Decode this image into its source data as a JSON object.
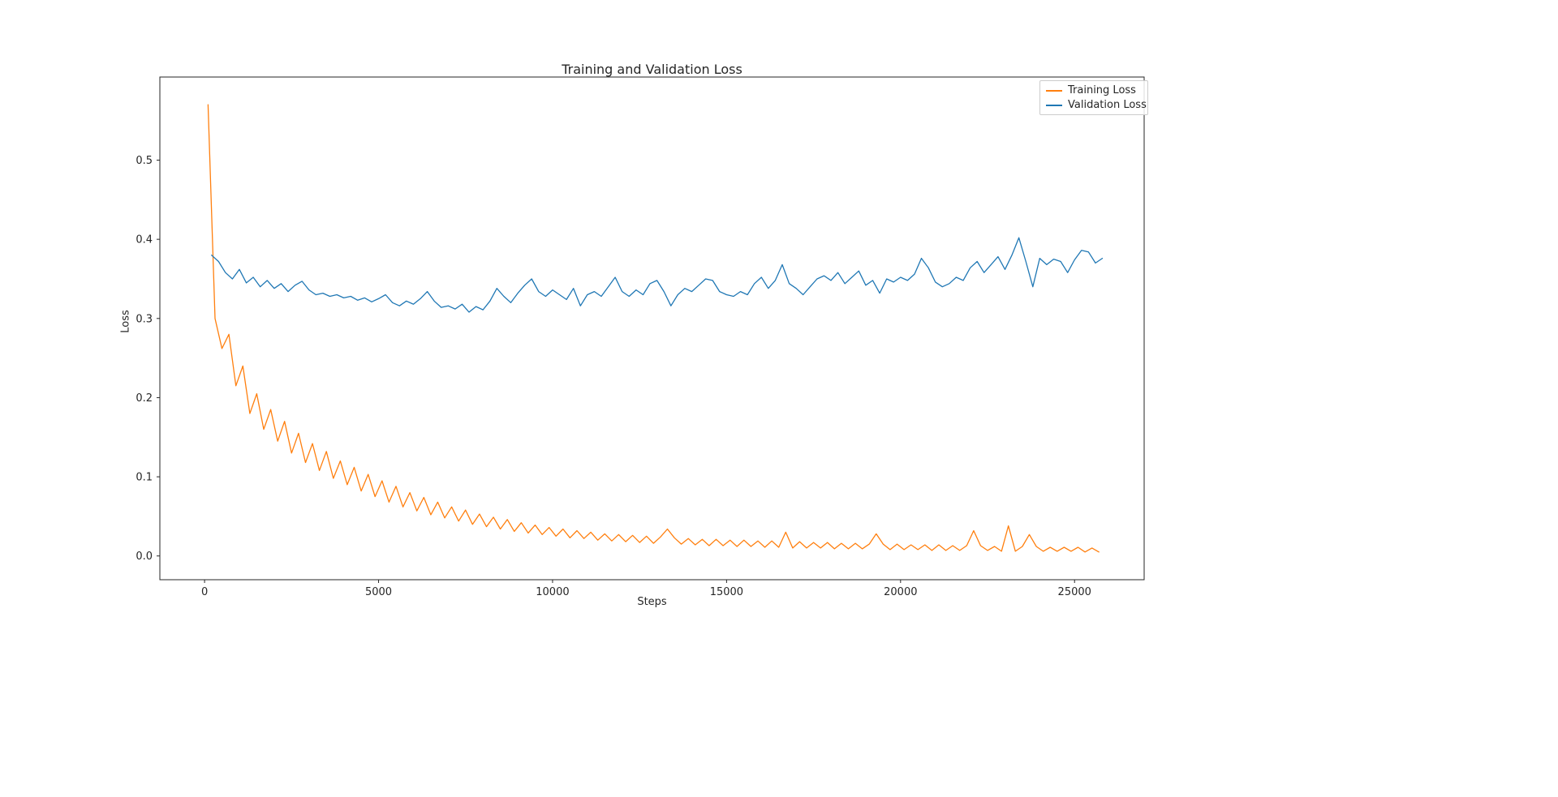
{
  "chart_data": {
    "type": "line",
    "title": "Training and Validation Loss",
    "xlabel": "Steps",
    "ylabel": "Loss",
    "xlim": [
      -1285,
      27000
    ],
    "ylim": [
      -0.03,
      0.605
    ],
    "x_ticks": [
      0,
      5000,
      10000,
      15000,
      20000,
      25000
    ],
    "y_ticks": [
      0.0,
      0.1,
      0.2,
      0.3,
      0.4,
      0.5
    ],
    "grid": false,
    "legend_position": "upper right",
    "frame_color": "#262626",
    "series": [
      {
        "name": "Training Loss",
        "color": "#ff7f0e",
        "x_start": 100,
        "x_step": 200,
        "values": [
          0.57,
          0.3,
          0.262,
          0.28,
          0.215,
          0.24,
          0.18,
          0.205,
          0.16,
          0.185,
          0.145,
          0.17,
          0.13,
          0.155,
          0.118,
          0.142,
          0.108,
          0.132,
          0.098,
          0.12,
          0.09,
          0.112,
          0.082,
          0.103,
          0.075,
          0.095,
          0.068,
          0.088,
          0.062,
          0.08,
          0.057,
          0.074,
          0.052,
          0.068,
          0.048,
          0.062,
          0.044,
          0.058,
          0.04,
          0.053,
          0.037,
          0.049,
          0.034,
          0.046,
          0.031,
          0.042,
          0.029,
          0.039,
          0.027,
          0.036,
          0.025,
          0.034,
          0.023,
          0.032,
          0.022,
          0.03,
          0.02,
          0.028,
          0.019,
          0.027,
          0.018,
          0.026,
          0.017,
          0.025,
          0.016,
          0.024,
          0.034,
          0.023,
          0.015,
          0.022,
          0.014,
          0.021,
          0.013,
          0.021,
          0.013,
          0.02,
          0.012,
          0.02,
          0.012,
          0.019,
          0.011,
          0.019,
          0.011,
          0.03,
          0.01,
          0.018,
          0.01,
          0.017,
          0.01,
          0.017,
          0.009,
          0.016,
          0.009,
          0.016,
          0.009,
          0.015,
          0.028,
          0.015,
          0.008,
          0.015,
          0.008,
          0.014,
          0.008,
          0.014,
          0.007,
          0.014,
          0.007,
          0.013,
          0.007,
          0.013,
          0.032,
          0.013,
          0.007,
          0.012,
          0.006,
          0.038,
          0.006,
          0.012,
          0.027,
          0.012,
          0.006,
          0.011,
          0.006,
          0.011,
          0.006,
          0.011,
          0.005,
          0.01,
          0.005
        ]
      },
      {
        "name": "Validation Loss",
        "color": "#1f77b4",
        "x_start": 200,
        "x_step": 200,
        "values": [
          0.38,
          0.372,
          0.358,
          0.35,
          0.362,
          0.345,
          0.352,
          0.34,
          0.348,
          0.338,
          0.344,
          0.334,
          0.342,
          0.347,
          0.336,
          0.33,
          0.332,
          0.328,
          0.33,
          0.326,
          0.328,
          0.323,
          0.326,
          0.321,
          0.325,
          0.33,
          0.32,
          0.316,
          0.322,
          0.318,
          0.325,
          0.334,
          0.322,
          0.314,
          0.316,
          0.312,
          0.318,
          0.308,
          0.315,
          0.311,
          0.322,
          0.338,
          0.328,
          0.32,
          0.332,
          0.342,
          0.35,
          0.334,
          0.328,
          0.336,
          0.33,
          0.324,
          0.338,
          0.316,
          0.33,
          0.334,
          0.328,
          0.34,
          0.352,
          0.334,
          0.328,
          0.336,
          0.33,
          0.344,
          0.348,
          0.334,
          0.316,
          0.33,
          0.338,
          0.334,
          0.342,
          0.35,
          0.348,
          0.334,
          0.33,
          0.328,
          0.334,
          0.33,
          0.344,
          0.352,
          0.338,
          0.348,
          0.368,
          0.344,
          0.338,
          0.33,
          0.34,
          0.35,
          0.354,
          0.348,
          0.358,
          0.344,
          0.352,
          0.36,
          0.342,
          0.348,
          0.332,
          0.35,
          0.346,
          0.352,
          0.348,
          0.356,
          0.376,
          0.364,
          0.346,
          0.34,
          0.344,
          0.352,
          0.348,
          0.364,
          0.372,
          0.358,
          0.368,
          0.378,
          0.362,
          0.38,
          0.402,
          0.372,
          0.34,
          0.376,
          0.368,
          0.375,
          0.372,
          0.358,
          0.374,
          0.386,
          0.384,
          0.37,
          0.376
        ]
      }
    ]
  }
}
